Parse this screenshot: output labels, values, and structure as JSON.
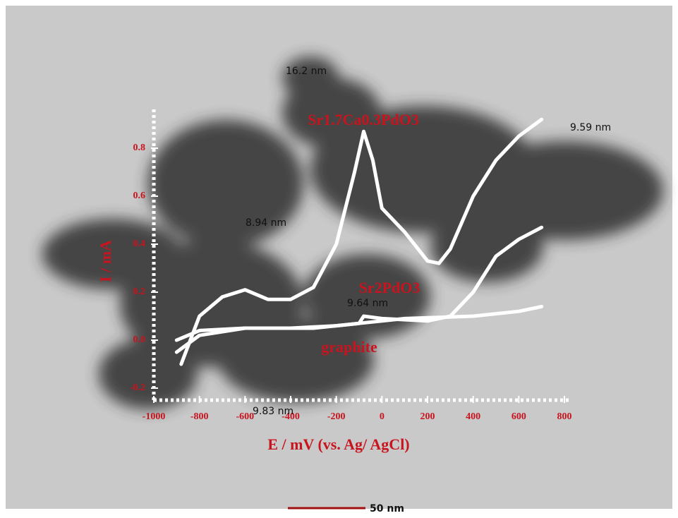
{
  "chart_data": {
    "type": "line",
    "x_label": "E / mV (vs. Ag/ AgCl)",
    "y_label": "I / mA",
    "xlim": [
      -1000,
      800
    ],
    "xticks": [
      -1000,
      -800,
      -600,
      -400,
      -200,
      0,
      200,
      400,
      600,
      800
    ],
    "ylim": [
      -0.25,
      0.95
    ],
    "yticks": [
      -0.2,
      {
        "value": 0,
        "label": "0.0"
      },
      0.2,
      0.4,
      0.6,
      0.8
    ],
    "series": [
      {
        "name": "Sr1.7Ca0.3PdO3",
        "color": "#ffffff",
        "x": [
          -880,
          -800,
          -700,
          -600,
          -500,
          -400,
          -300,
          -200,
          -120,
          -80,
          -40,
          0,
          100,
          200,
          250,
          300,
          400,
          500,
          600,
          700
        ],
        "values": [
          -0.1,
          0.1,
          0.18,
          0.21,
          0.17,
          0.17,
          0.22,
          0.4,
          0.7,
          0.87,
          0.75,
          0.55,
          0.45,
          0.33,
          0.32,
          0.38,
          0.6,
          0.75,
          0.85,
          0.92
        ]
      },
      {
        "name": "Sr2PdO3",
        "color": "#ffffff",
        "x": [
          -900,
          -800,
          -600,
          -400,
          -200,
          -100,
          -80,
          0,
          200,
          300,
          400,
          500,
          600,
          700
        ],
        "values": [
          0.0,
          0.04,
          0.05,
          0.05,
          0.06,
          0.07,
          0.1,
          0.09,
          0.08,
          0.1,
          0.2,
          0.35,
          0.42,
          0.47
        ]
      },
      {
        "name": "graphite",
        "color": "#ffffff",
        "x": [
          -900,
          -800,
          -600,
          -300,
          -100,
          100,
          400,
          600,
          700
        ],
        "values": [
          -0.05,
          0.02,
          0.05,
          0.05,
          0.07,
          0.09,
          0.1,
          0.12,
          0.14
        ]
      }
    ],
    "annotations": [
      "16.2 nm",
      "9.59 nm",
      "8.94 nm",
      "9.64 nm",
      "9.83 nm",
      "50 nm"
    ]
  }
}
